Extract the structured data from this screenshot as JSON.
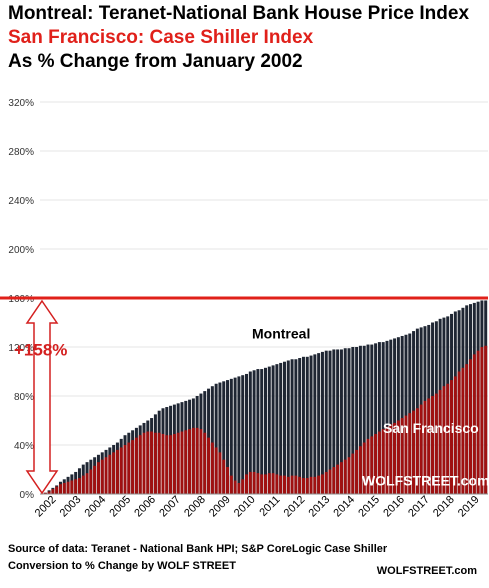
{
  "titles": {
    "line1": "Montreal: Teranet-National  Bank House Price Index",
    "line2": "San Francisco: Case Shiller Index",
    "line3": "As % Change from January 2002"
  },
  "source": {
    "line1": "Source of data: Teranet - National Bank HPI; S&P CoreLogic Case Shiller",
    "line2": "Conversion to % Change by WOLF STREET",
    "brand": "WOLFSTREET.com"
  },
  "colors": {
    "montreal": "#1f2633",
    "san_francisco": "#a01010",
    "reference_line": "#e0201a",
    "annotation": "#d42020",
    "grid": "#e6e6e6"
  },
  "chart_data": {
    "type": "bar",
    "ylim": [
      0,
      320
    ],
    "y_ticks": [
      "0%",
      "40%",
      "80%",
      "120%",
      "160%",
      "200%",
      "240%",
      "280%",
      "320%"
    ],
    "x_tick_labels": [
      "2002",
      "2003",
      "2004",
      "2005",
      "2006",
      "2007",
      "2008",
      "2009",
      "2010",
      "2011",
      "2012",
      "2013",
      "2014",
      "2015",
      "2016",
      "2017",
      "2018",
      "2019"
    ],
    "reference_value": 160,
    "annotation": "+158%",
    "watermark": "WOLFSTREET.com",
    "grid": true,
    "series": [
      {
        "name": "Montreal",
        "values": [
          0,
          1,
          3,
          5,
          7,
          10,
          12,
          14,
          16,
          18,
          21,
          24,
          26,
          28,
          30,
          32,
          34,
          36,
          38,
          40,
          42,
          45,
          48,
          50,
          52,
          54,
          56,
          58,
          60,
          62,
          65,
          68,
          70,
          71,
          72,
          73,
          74,
          75,
          76,
          77,
          78,
          80,
          82,
          84,
          86,
          88,
          90,
          91,
          92,
          93,
          94,
          95,
          96,
          97,
          98,
          100,
          101,
          102,
          102,
          103,
          104,
          105,
          106,
          107,
          108,
          109,
          110,
          110,
          111,
          112,
          112,
          113,
          114,
          115,
          116,
          117,
          117,
          118,
          118,
          118,
          119,
          119,
          120,
          120,
          121,
          121,
          122,
          122,
          123,
          124,
          124,
          125,
          126,
          127,
          128,
          129,
          130,
          131,
          133,
          135,
          136,
          137,
          138,
          140,
          141,
          143,
          144,
          145,
          147,
          149,
          150,
          152,
          154,
          155,
          156,
          157,
          158,
          158
        ]
      },
      {
        "name": "San Francisco",
        "values": [
          0,
          1,
          2,
          4,
          6,
          8,
          9,
          10,
          11,
          12,
          13,
          15,
          17,
          20,
          23,
          26,
          28,
          30,
          32,
          34,
          36,
          38,
          40,
          42,
          44,
          46,
          48,
          50,
          51,
          51,
          50,
          50,
          49,
          48,
          48,
          49,
          50,
          51,
          52,
          53,
          54,
          54,
          53,
          50,
          46,
          42,
          38,
          34,
          28,
          22,
          15,
          11,
          9,
          12,
          16,
          18,
          18,
          17,
          16,
          16,
          17,
          17,
          16,
          15,
          15,
          14,
          15,
          15,
          14,
          13,
          13,
          14,
          14,
          15,
          16,
          18,
          20,
          22,
          24,
          26,
          28,
          30,
          33,
          36,
          39,
          42,
          45,
          47,
          49,
          51,
          53,
          55,
          57,
          58,
          60,
          62,
          64,
          66,
          68,
          70,
          73,
          76,
          78,
          80,
          82,
          85,
          88,
          90,
          93,
          96,
          100,
          103,
          106,
          110,
          114,
          117,
          120,
          121
        ]
      }
    ],
    "labels": {
      "montreal": "Montreal",
      "san_francisco": "San Francisco"
    }
  }
}
